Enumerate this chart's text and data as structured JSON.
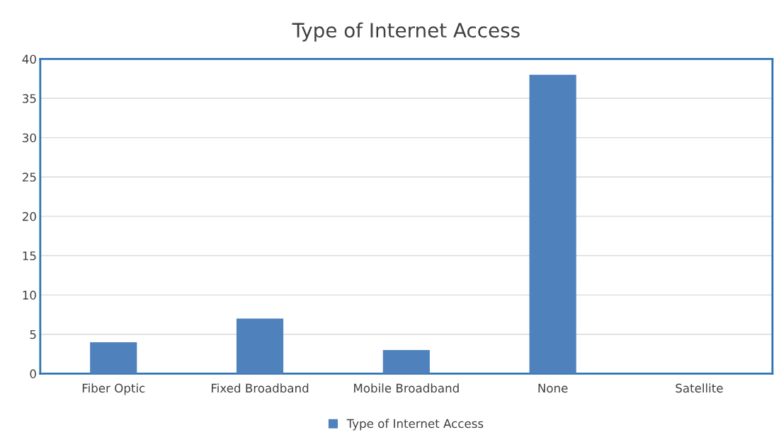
{
  "chart_data": {
    "type": "bar",
    "title": "Type of Internet Access",
    "categories": [
      "Fiber Optic",
      "Fixed Broadband",
      "Mobile Broadband",
      "None",
      "Satellite"
    ],
    "series": [
      {
        "name": "Type of Internet Access",
        "color": "#4f81bd",
        "values": [
          4,
          7,
          3,
          38,
          0
        ]
      }
    ],
    "ylim": [
      0,
      40
    ],
    "yticks": [
      0,
      5,
      10,
      15,
      20,
      25,
      30,
      35,
      40
    ],
    "grid": "y",
    "legend": "bottom"
  }
}
